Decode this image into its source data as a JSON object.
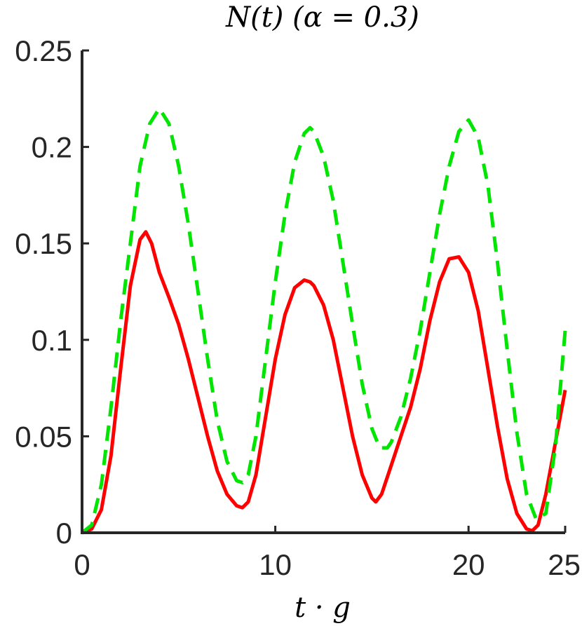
{
  "chart_data": {
    "type": "line",
    "title": "N(t) (α = 0.3)",
    "xlabel": "t · g",
    "ylabel": "",
    "xlim": [
      0,
      25
    ],
    "ylim": [
      0,
      0.25
    ],
    "x_ticks": [
      0,
      10,
      20,
      25
    ],
    "x_tick_labels": [
      "0",
      "10",
      "20",
      "25"
    ],
    "y_ticks": [
      0,
      0.05,
      0.1,
      0.15,
      0.2,
      0.25
    ],
    "y_tick_labels": [
      "0",
      "0.05",
      "0.1",
      "0.15",
      "0.2",
      "0.25"
    ],
    "grid": false,
    "legend": "none",
    "series": [
      {
        "color": "#ff0000",
        "style": "solid",
        "x": [
          0,
          0.5,
          1,
          1.5,
          2,
          2.5,
          3,
          3.3,
          3.6,
          4,
          4.5,
          5,
          5.5,
          6,
          6.5,
          7,
          7.5,
          8,
          8.3,
          8.6,
          9,
          9.5,
          10,
          10.5,
          11,
          11.5,
          11.8,
          12,
          12.5,
          13,
          13.5,
          14,
          14.5,
          15,
          15.2,
          15.5,
          16,
          16.5,
          17,
          17.5,
          18,
          18.5,
          19,
          19.5,
          20,
          20.5,
          21,
          21.5,
          22,
          22.5,
          23,
          23.3,
          23.6,
          24,
          24.5,
          25
        ],
        "y": [
          0,
          0.002,
          0.012,
          0.04,
          0.085,
          0.128,
          0.152,
          0.156,
          0.15,
          0.135,
          0.122,
          0.108,
          0.09,
          0.07,
          0.05,
          0.032,
          0.02,
          0.014,
          0.013,
          0.016,
          0.03,
          0.06,
          0.09,
          0.113,
          0.127,
          0.131,
          0.13,
          0.128,
          0.118,
          0.1,
          0.075,
          0.05,
          0.03,
          0.018,
          0.016,
          0.02,
          0.035,
          0.05,
          0.065,
          0.085,
          0.11,
          0.13,
          0.142,
          0.143,
          0.135,
          0.115,
          0.085,
          0.055,
          0.028,
          0.01,
          0.002,
          0.001,
          0.004,
          0.02,
          0.047,
          0.074
        ]
      },
      {
        "color": "#00e600",
        "style": "dashed",
        "x": [
          0,
          0.5,
          1,
          1.5,
          2,
          2.5,
          3,
          3.5,
          4,
          4.5,
          5,
          5.5,
          6,
          6.5,
          7,
          7.5,
          8,
          8.3,
          8.6,
          9,
          9.5,
          10,
          10.5,
          11,
          11.5,
          11.8,
          12,
          12.5,
          13,
          13.5,
          14,
          14.5,
          15,
          15.4,
          15.8,
          16,
          16.5,
          17,
          17.5,
          18,
          18.5,
          19,
          19.5,
          20,
          20.5,
          21,
          21.5,
          22,
          22.5,
          23,
          23.5,
          24,
          24.5,
          25
        ],
        "y": [
          0,
          0.004,
          0.025,
          0.065,
          0.11,
          0.15,
          0.19,
          0.212,
          0.22,
          0.212,
          0.19,
          0.16,
          0.125,
          0.09,
          0.058,
          0.037,
          0.027,
          0.026,
          0.03,
          0.05,
          0.09,
          0.13,
          0.165,
          0.192,
          0.207,
          0.21,
          0.208,
          0.195,
          0.172,
          0.14,
          0.108,
          0.077,
          0.054,
          0.044,
          0.044,
          0.047,
          0.06,
          0.08,
          0.105,
          0.135,
          0.165,
          0.19,
          0.208,
          0.214,
          0.205,
          0.18,
          0.14,
          0.095,
          0.052,
          0.02,
          0.007,
          0.01,
          0.045,
          0.105
        ]
      }
    ]
  }
}
